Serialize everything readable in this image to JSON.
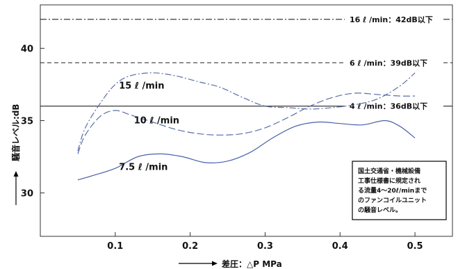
{
  "chart_data": {
    "type": "line",
    "xlabel": "差圧：△P MPa",
    "ylabel": "騒音レベル:dB",
    "xlim": [
      0,
      0.55
    ],
    "ylim": [
      27,
      43
    ],
    "x_ticks": [
      0.1,
      0.2,
      0.3,
      0.4,
      0.5
    ],
    "x_tick_labels": [
      "0.1",
      "0.2",
      "0.3",
      "0.4",
      "0.5"
    ],
    "y_ticks": [
      30,
      35,
      40
    ],
    "y_tick_labels": [
      "30",
      "35",
      "40"
    ],
    "grid": false,
    "reference_lines": [
      {
        "label": "16 ℓ /min：42dB以下",
        "y": 42,
        "style": "dash-dot"
      },
      {
        "label": "6 ℓ /min：39dB以下",
        "y": 39,
        "style": "dashed"
      },
      {
        "label": "4 ℓ /min：36dB以下",
        "y": 36,
        "style": "solid"
      }
    ],
    "series": [
      {
        "name": "15 ℓ /min",
        "style": "dash-dot",
        "x": [
          0.05,
          0.06,
          0.08,
          0.1,
          0.12,
          0.15,
          0.18,
          0.21,
          0.24,
          0.27,
          0.3,
          0.33,
          0.36,
          0.39,
          0.42,
          0.45,
          0.48,
          0.5
        ],
        "y": [
          32.9,
          34.5,
          36.2,
          37.5,
          38.1,
          38.3,
          38.1,
          37.7,
          37.3,
          36.6,
          36.0,
          35.9,
          35.8,
          35.9,
          36.1,
          36.5,
          37.4,
          38.3
        ]
      },
      {
        "name": "10 ℓ /min",
        "style": "long-dash",
        "x": [
          0.05,
          0.06,
          0.08,
          0.1,
          0.12,
          0.15,
          0.18,
          0.21,
          0.24,
          0.27,
          0.3,
          0.33,
          0.36,
          0.39,
          0.42,
          0.45,
          0.48,
          0.5
        ],
        "y": [
          32.7,
          34.0,
          35.3,
          35.7,
          35.4,
          34.9,
          34.4,
          34.1,
          34.0,
          34.1,
          34.5,
          35.2,
          36.0,
          36.6,
          36.9,
          36.8,
          36.7,
          36.7
        ]
      },
      {
        "name": "7.5 ℓ /min",
        "style": "solid",
        "x": [
          0.05,
          0.07,
          0.1,
          0.13,
          0.16,
          0.19,
          0.22,
          0.25,
          0.28,
          0.31,
          0.34,
          0.37,
          0.4,
          0.43,
          0.46,
          0.48,
          0.5
        ],
        "y": [
          30.9,
          31.2,
          31.7,
          32.5,
          32.7,
          32.5,
          32.1,
          32.2,
          32.8,
          33.8,
          34.6,
          34.9,
          34.8,
          34.7,
          35.0,
          34.6,
          33.8
        ]
      }
    ],
    "note": [
      "国土交通省・機械設備",
      "工事仕様書に規定され",
      "る流量4～20ℓ/minまで",
      "のファンコイルユニット",
      "の騒音レベル。"
    ]
  }
}
